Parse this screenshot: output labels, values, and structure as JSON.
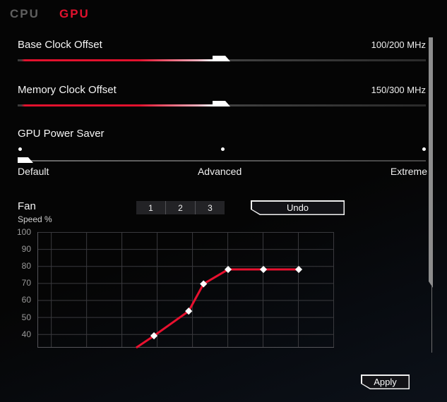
{
  "tabs": [
    {
      "label": "CPU",
      "active": false
    },
    {
      "label": "GPU",
      "active": true
    }
  ],
  "colors": {
    "accent_red": "#e2112d",
    "track_gray": "#3f3f3f",
    "grid": "#3a3a3e",
    "axis": "#55555a",
    "tick_text": "#9a9a9a",
    "scrollbar": "#8d8d8d",
    "marker": "#ffffff"
  },
  "sliders": [
    {
      "label": "Base Clock Offset",
      "value": "100/200 MHz",
      "fill_pct": 48
    },
    {
      "label": "Memory Clock Offset",
      "value": "150/300 MHz",
      "fill_pct": 48
    }
  ],
  "power_saver": {
    "label": "GPU Power Saver",
    "options": [
      "Default",
      "Advanced",
      "Extreme"
    ],
    "selected": "Default"
  },
  "fan": {
    "title": "Fan",
    "subtitle": "Speed %",
    "profile_buttons": [
      "1",
      "2",
      "3"
    ],
    "undo_label": "Undo"
  },
  "apply_label": "Apply",
  "chart_data": {
    "type": "line",
    "title": "Fan curve",
    "ylabel": "Speed %",
    "ylim": [
      32,
      100
    ],
    "yticks": [
      100,
      90,
      80,
      70,
      60,
      50,
      40
    ],
    "grid": true,
    "legend": false,
    "line_color": "#e8112f",
    "marker": "diamond-white",
    "x_unit": "percent_of_plot_width",
    "x_gridlines_pct": [
      4.8,
      16.7,
      28.6,
      40.5,
      52.4,
      64.3,
      76.2,
      88.1,
      100
    ],
    "points": [
      {
        "x": 33.3,
        "y": 32,
        "marker": false
      },
      {
        "x": 39.3,
        "y": 39,
        "marker": true
      },
      {
        "x": 51.0,
        "y": 53.5,
        "marker": true
      },
      {
        "x": 56.0,
        "y": 69.5,
        "marker": true
      },
      {
        "x": 64.3,
        "y": 78,
        "marker": true
      },
      {
        "x": 76.2,
        "y": 78,
        "marker": true
      },
      {
        "x": 88.1,
        "y": 78,
        "marker": true
      }
    ]
  }
}
